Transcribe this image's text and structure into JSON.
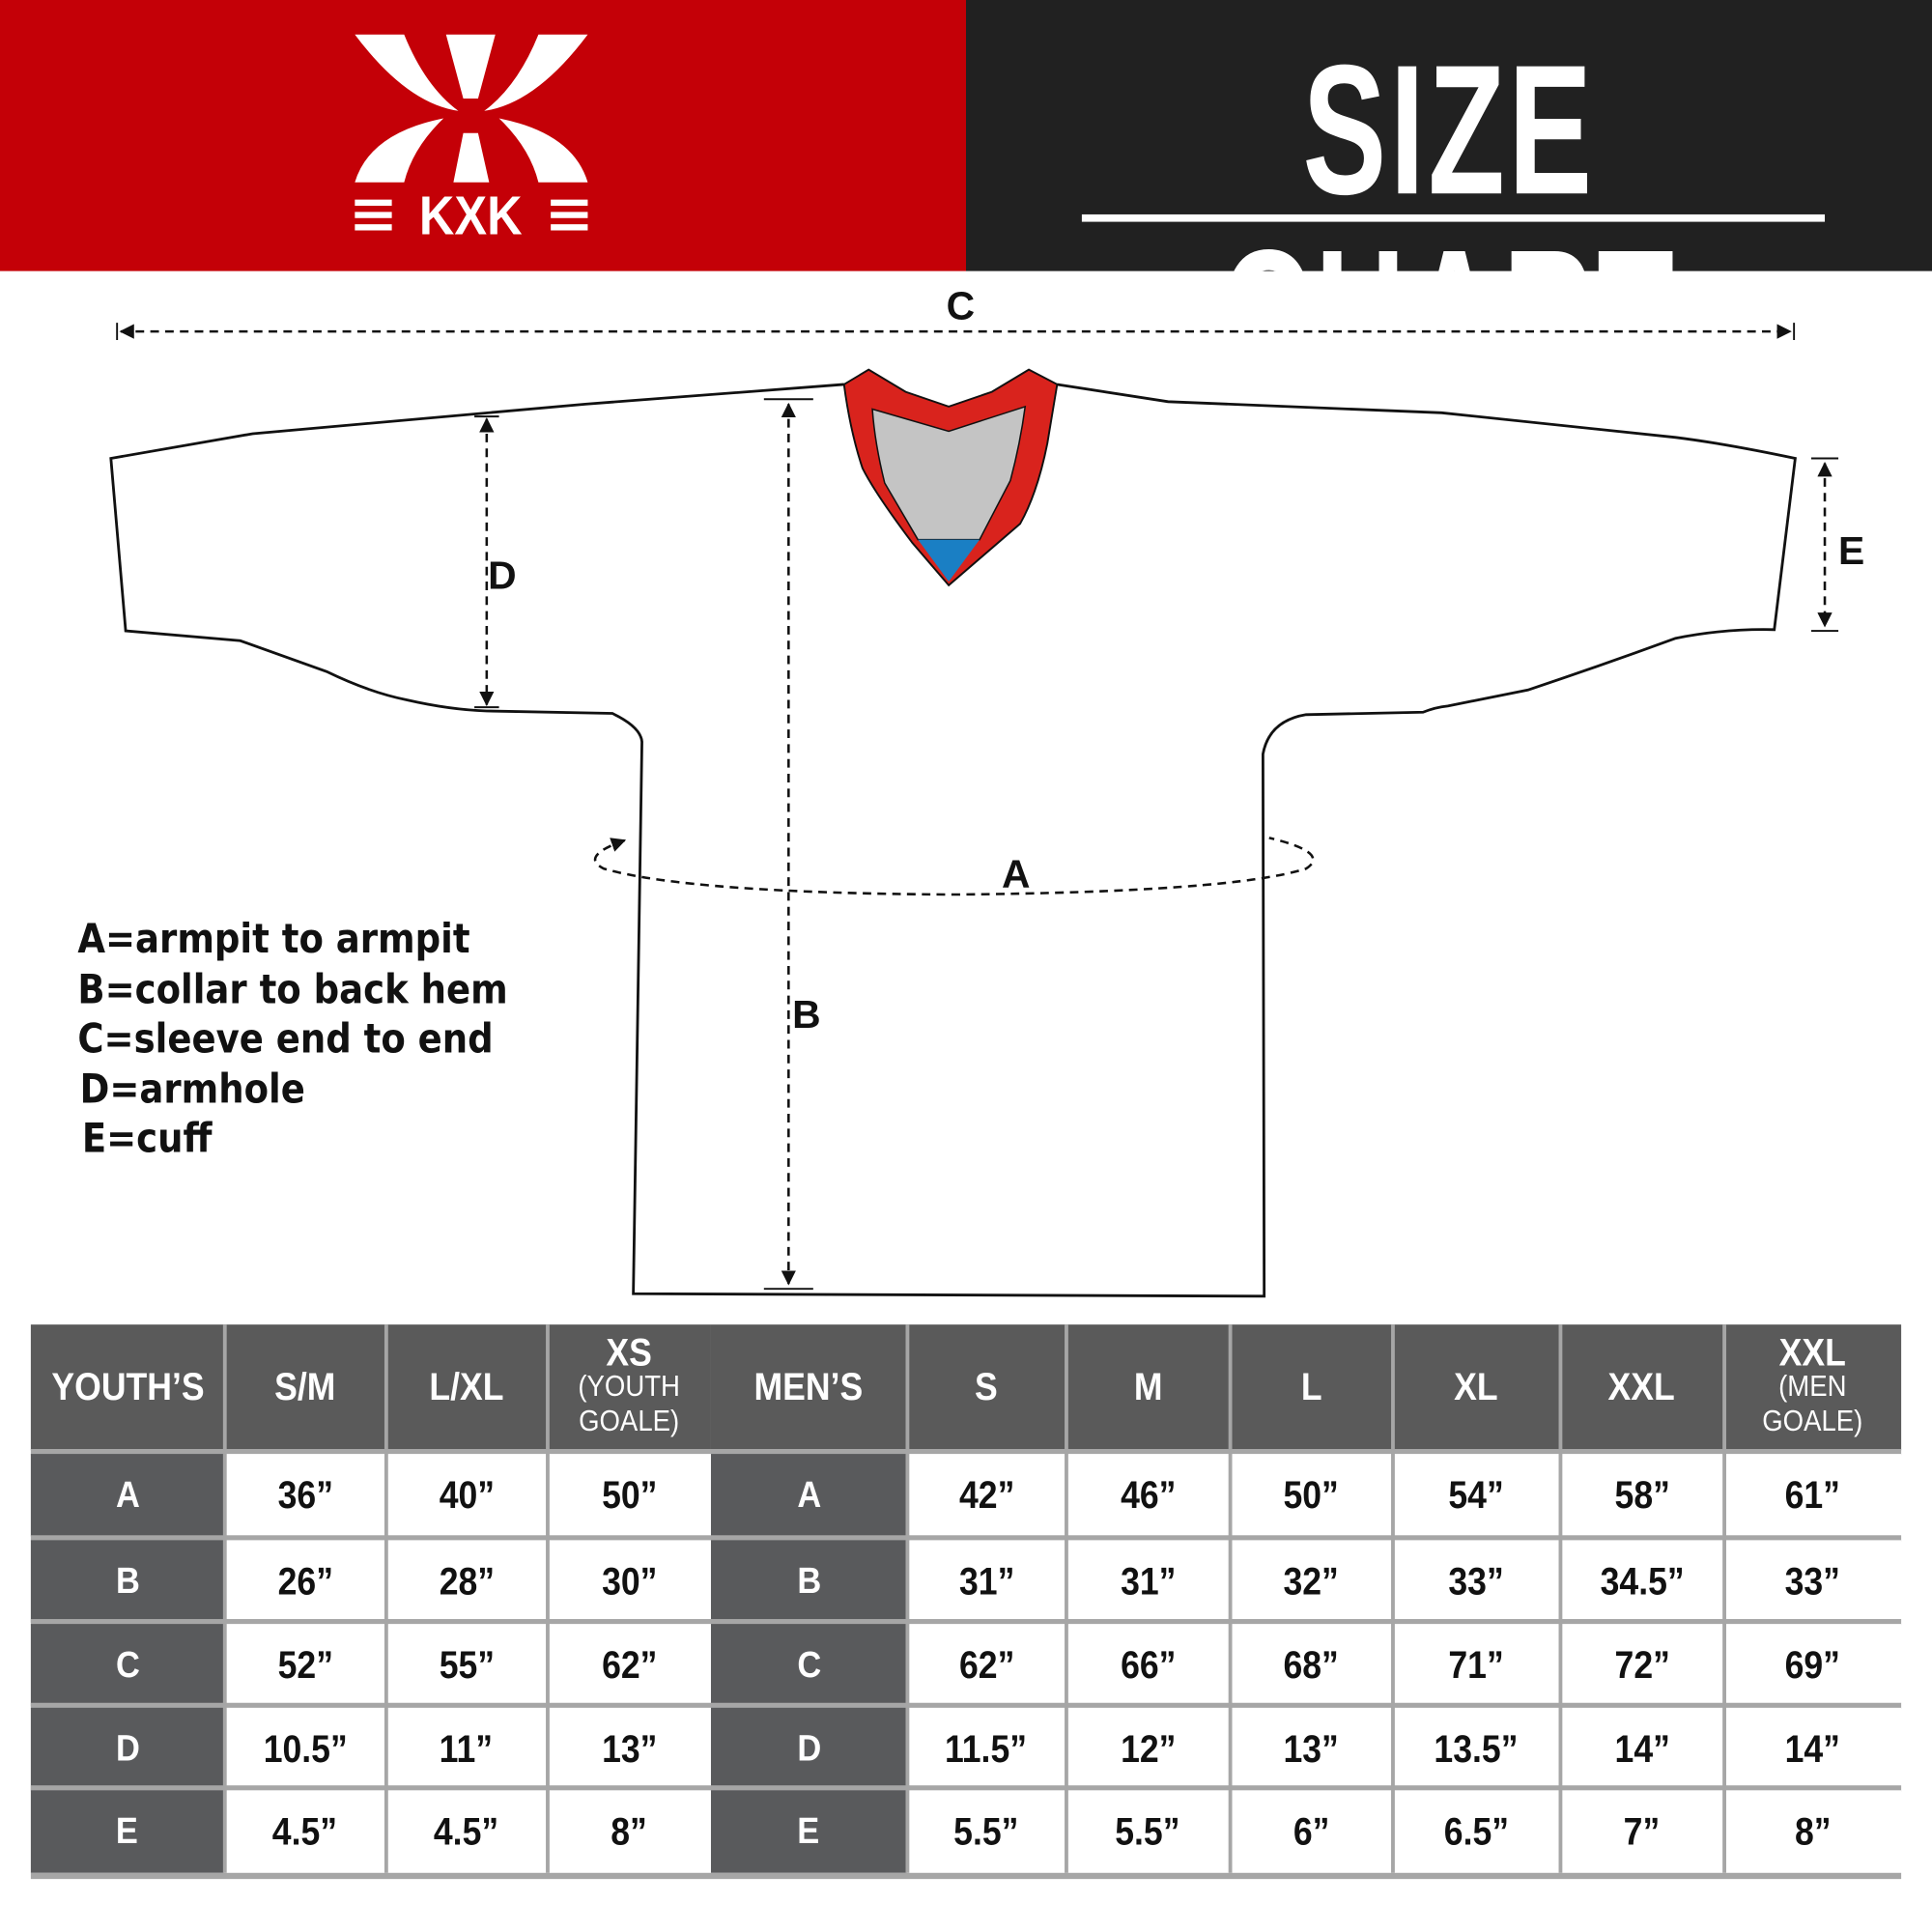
{
  "header": {
    "brand": "KXK",
    "title": "SIZE CHART",
    "colors": {
      "brand_red": "#c40007",
      "dark": "#212121",
      "collar_red": "#d9231d",
      "collar_gray": "#c4c4c4",
      "collar_blue": "#1a7fc4",
      "table_header": "#5a5a5a"
    }
  },
  "diagram": {
    "labels": {
      "a": "A",
      "b": "B",
      "c": "C",
      "d": "D",
      "e": "E"
    },
    "legend": [
      "A=armpit to armpit",
      "B=collar to back hem",
      "C=sleeve end to end",
      "D=armhole",
      "E=cuff"
    ]
  },
  "table": {
    "columns": [
      {
        "label": "YOUTH’S"
      },
      {
        "label": "S/M"
      },
      {
        "label": "L/XL"
      },
      {
        "label": "XS",
        "sub": "(YOUTH GOALE)"
      },
      {
        "label": "MEN’S"
      },
      {
        "label": "S"
      },
      {
        "label": "M"
      },
      {
        "label": "L"
      },
      {
        "label": "XL"
      },
      {
        "label": "XXL"
      },
      {
        "label": "XXL",
        "sub": "(MEN GOALE)"
      }
    ],
    "rows": [
      [
        "A",
        "36”",
        "40”",
        "50”",
        "A",
        "42”",
        "46”",
        "50”",
        "54”",
        "58”",
        "61”"
      ],
      [
        "B",
        "26”",
        "28”",
        "30”",
        "B",
        "31”",
        "31”",
        "32”",
        "33”",
        "34.5”",
        "33”"
      ],
      [
        "C",
        "52”",
        "55”",
        "62”",
        "C",
        "62”",
        "66”",
        "68”",
        "71”",
        "72”",
        "69”"
      ],
      [
        "D",
        "10.5”",
        "11”",
        "13”",
        "D",
        "11.5”",
        "12”",
        "13”",
        "13.5”",
        "14”",
        "14”"
      ],
      [
        "E",
        "4.5”",
        "4.5”",
        "8”",
        "E",
        "5.5”",
        "5.5”",
        "6”",
        "6.5”",
        "7”",
        "8”"
      ]
    ]
  }
}
